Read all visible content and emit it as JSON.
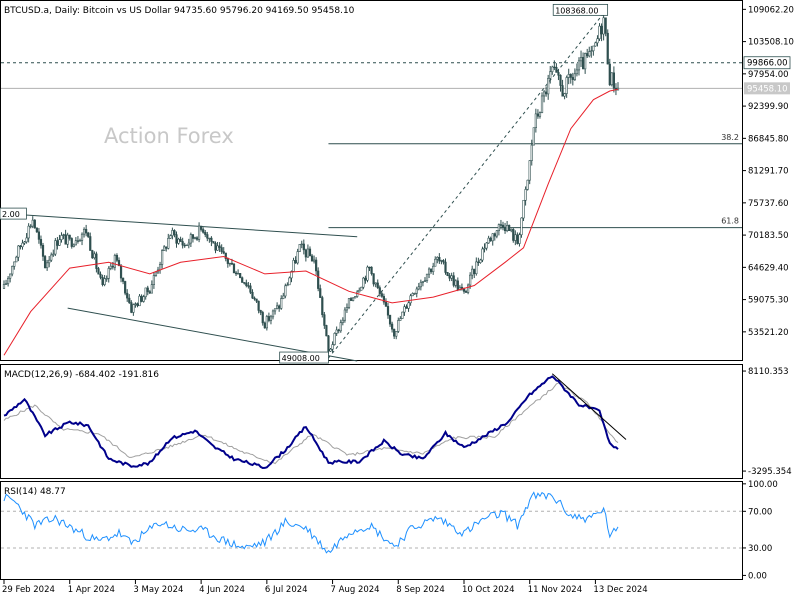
{
  "colors": {
    "background": "#ffffff",
    "frame": "#000000",
    "candle": "#2f4f4f",
    "ma_line": "#e8202a",
    "macd_line": "#00008b",
    "macd_signal": "#a0a0a0",
    "rsi_line": "#1e90ff",
    "level_line": "#2f4f4f",
    "trendline": "#2f4f4f",
    "watermark": "#c8c8c8"
  },
  "header": {
    "title": "BTCUSD.a, Daily:  Bitcoin vs US Dollar  94735.60 95796.20 94169.50 95458.10"
  },
  "watermark": "Action Forex",
  "chart_data": [
    {
      "type": "candlestick",
      "title": "BTCUSD.a, Daily:  Bitcoin vs US Dollar  94735.60 95796.20 94169.50 95458.10",
      "ylim": [
        48500,
        110500
      ],
      "y_ticks": [
        "109062.20",
        "103508.10",
        "97954.00",
        "92399.90",
        "86845.80",
        "81291.70",
        "75737.60",
        "70183.50",
        "64629.40",
        "59075.30",
        "53521.20"
      ],
      "x_ticks": [
        "29 Feb 2024",
        "1 Apr 2024",
        "3 May 2024",
        "4 Jun 2024",
        "6 Jul 2024",
        "7 Aug 2024",
        "8 Sep 2024",
        "10 Oct 2024",
        "11 Nov 2024",
        "13 Dec 2024"
      ],
      "x_range": [
        "2024-02-29",
        "2024-12-24"
      ],
      "series": [
        {
          "kind": "price-close",
          "points": [
            [
              "2024-02-29",
              61000
            ],
            [
              "2024-03-05",
              66000
            ],
            [
              "2024-03-14",
              73000
            ],
            [
              "2024-03-20",
              65000
            ],
            [
              "2024-03-27",
              70000
            ],
            [
              "2024-04-01",
              69000
            ],
            [
              "2024-04-09",
              71000
            ],
            [
              "2024-04-17",
              61000
            ],
            [
              "2024-04-23",
              66500
            ],
            [
              "2024-05-01",
              57500
            ],
            [
              "2024-05-10",
              61000
            ],
            [
              "2024-05-20",
              70500
            ],
            [
              "2024-05-27",
              68500
            ],
            [
              "2024-06-05",
              71500
            ],
            [
              "2024-06-12",
              67500
            ],
            [
              "2024-06-20",
              64500
            ],
            [
              "2024-06-27",
              61500
            ],
            [
              "2024-07-05",
              55000
            ],
            [
              "2024-07-12",
              58000
            ],
            [
              "2024-07-22",
              68000
            ],
            [
              "2024-07-29",
              66000
            ],
            [
              "2024-08-05",
              50000
            ],
            [
              "2024-08-15",
              58500
            ],
            [
              "2024-08-25",
              64500
            ],
            [
              "2024-09-06",
              53500
            ],
            [
              "2024-09-15",
              60500
            ],
            [
              "2024-09-27",
              66000
            ],
            [
              "2024-10-10",
              60000
            ],
            [
              "2024-10-20",
              68500
            ],
            [
              "2024-10-29",
              72500
            ],
            [
              "2024-11-05",
              69000
            ],
            [
              "2024-11-10",
              79500
            ],
            [
              "2024-11-13",
              89000
            ],
            [
              "2024-11-22",
              98500
            ],
            [
              "2024-11-27",
              95000
            ],
            [
              "2024-12-05",
              99000
            ],
            [
              "2024-12-12",
              101500
            ],
            [
              "2024-12-17",
              107500
            ],
            [
              "2024-12-20",
              97500
            ],
            [
              "2024-12-24",
              95458.1
            ]
          ]
        },
        {
          "kind": "moving-average",
          "points": [
            [
              "2024-02-29",
              49500
            ],
            [
              "2024-03-13",
              57000
            ],
            [
              "2024-04-01",
              64500
            ],
            [
              "2024-04-20",
              65500
            ],
            [
              "2024-05-10",
              63500
            ],
            [
              "2024-05-25",
              65500
            ],
            [
              "2024-06-15",
              66500
            ],
            [
              "2024-07-05",
              63500
            ],
            [
              "2024-07-25",
              64000
            ],
            [
              "2024-08-15",
              60500
            ],
            [
              "2024-09-05",
              58500
            ],
            [
              "2024-09-25",
              59500
            ],
            [
              "2024-10-15",
              61500
            ],
            [
              "2024-10-30",
              65500
            ],
            [
              "2024-11-08",
              68000
            ],
            [
              "2024-11-20",
              79000
            ],
            [
              "2024-12-01",
              88500
            ],
            [
              "2024-12-12",
              93500
            ],
            [
              "2024-12-20",
              95000
            ],
            [
              "2024-12-24",
              95300
            ]
          ]
        }
      ],
      "levels": [
        {
          "value": 99866.0,
          "label": "99866.00",
          "style": "dashed"
        },
        {
          "value": 95458.1,
          "label": "95458.10",
          "style": "solid"
        }
      ],
      "fibonacci": [
        {
          "label": "38.2",
          "value": 85908,
          "from": "2024-08-05"
        },
        {
          "label": "61.8",
          "value": 71465,
          "from": "2024-08-05"
        }
      ],
      "annotations": [
        {
          "label": "108368.00",
          "date": "2024-12-17",
          "value": 108368.0
        },
        {
          "label": "49008.00",
          "date": "2024-08-05",
          "value": 49008.0
        },
        {
          "label": "2.00",
          "date": "2024-02-29",
          "value": 73800
        }
      ],
      "trendlines": [
        {
          "style": "solid",
          "points": [
            [
              "2024-03-04",
              73800
            ],
            [
              "2024-08-19",
              69900
            ]
          ]
        },
        {
          "style": "solid",
          "points": [
            [
              "2024-03-31",
              57600
            ],
            [
              "2024-08-19",
              48500
            ]
          ]
        },
        {
          "style": "dashed",
          "points": [
            [
              "2024-08-05",
              49008
            ],
            [
              "2024-12-17",
              108368
            ]
          ]
        }
      ]
    },
    {
      "type": "line",
      "title": "MACD(12,26,9) -684.402 -191.816",
      "ylim": [
        -4200,
        8800
      ],
      "y_ticks": [
        "8110.353",
        "-3295.354"
      ],
      "series": [
        {
          "kind": "macd",
          "points": [
            [
              "2024-02-29",
              3000
            ],
            [
              "2024-03-10",
              4900
            ],
            [
              "2024-03-20",
              800
            ],
            [
              "2024-04-01",
              2300
            ],
            [
              "2024-04-10",
              1900
            ],
            [
              "2024-04-20",
              -1900
            ],
            [
              "2024-05-01",
              -2700
            ],
            [
              "2024-05-10",
              -2400
            ],
            [
              "2024-05-20",
              400
            ],
            [
              "2024-06-01",
              1300
            ],
            [
              "2024-06-10",
              -500
            ],
            [
              "2024-06-20",
              -1900
            ],
            [
              "2024-07-05",
              -2900
            ],
            [
              "2024-07-15",
              -900
            ],
            [
              "2024-07-25",
              1800
            ],
            [
              "2024-08-05",
              -2300
            ],
            [
              "2024-08-20",
              -2200
            ],
            [
              "2024-09-01",
              100
            ],
            [
              "2024-09-10",
              -1400
            ],
            [
              "2024-09-20",
              -1900
            ],
            [
              "2024-10-01",
              1000
            ],
            [
              "2024-10-10",
              -600
            ],
            [
              "2024-10-20",
              700
            ],
            [
              "2024-11-01",
              2400
            ],
            [
              "2024-11-10",
              5200
            ],
            [
              "2024-11-22",
              7600
            ],
            [
              "2024-12-05",
              4300
            ],
            [
              "2024-12-15",
              3500
            ],
            [
              "2024-12-20",
              -200
            ],
            [
              "2024-12-24",
              -684.4
            ]
          ]
        },
        {
          "kind": "signal",
          "points": [
            [
              "2024-02-29",
              2500
            ],
            [
              "2024-03-15",
              4200
            ],
            [
              "2024-03-28",
              1500
            ],
            [
              "2024-04-15",
              1000
            ],
            [
              "2024-05-01",
              -1800
            ],
            [
              "2024-05-20",
              -500
            ],
            [
              "2024-06-05",
              900
            ],
            [
              "2024-06-25",
              -1200
            ],
            [
              "2024-07-10",
              -2400
            ],
            [
              "2024-07-28",
              900
            ],
            [
              "2024-08-15",
              -1500
            ],
            [
              "2024-09-01",
              -700
            ],
            [
              "2024-09-20",
              -1300
            ],
            [
              "2024-10-05",
              500
            ],
            [
              "2024-10-25",
              600
            ],
            [
              "2024-11-08",
              3500
            ],
            [
              "2024-11-25",
              6700
            ],
            [
              "2024-12-10",
              4300
            ],
            [
              "2024-12-24",
              -191.8
            ]
          ]
        }
      ],
      "trendlines": [
        {
          "style": "solid",
          "points": [
            [
              "2024-11-22",
              7800
            ],
            [
              "2024-12-24",
              300
            ]
          ]
        }
      ]
    },
    {
      "type": "line",
      "title": "RSI(14) 48.77",
      "ylim": [
        0,
        100
      ],
      "y_ticks": [
        "100.00",
        "70.00",
        "30.00",
        "0.00"
      ],
      "levels": [
        {
          "value": 70,
          "style": "dashed"
        },
        {
          "value": 30,
          "style": "dashed"
        }
      ],
      "series": [
        {
          "kind": "rsi",
          "points": [
            [
              "2024-02-29",
              85
            ],
            [
              "2024-03-05",
              81
            ],
            [
              "2024-03-15",
              55
            ],
            [
              "2024-03-25",
              62
            ],
            [
              "2024-04-05",
              48
            ],
            [
              "2024-04-15",
              37
            ],
            [
              "2024-04-25",
              46
            ],
            [
              "2024-05-01",
              35
            ],
            [
              "2024-05-15",
              58
            ],
            [
              "2024-05-25",
              50
            ],
            [
              "2024-06-05",
              49
            ],
            [
              "2024-06-15",
              38
            ],
            [
              "2024-06-25",
              30
            ],
            [
              "2024-07-05",
              36
            ],
            [
              "2024-07-15",
              58
            ],
            [
              "2024-07-25",
              52
            ],
            [
              "2024-08-05",
              25
            ],
            [
              "2024-08-15",
              48
            ],
            [
              "2024-08-25",
              55
            ],
            [
              "2024-09-06",
              32
            ],
            [
              "2024-09-15",
              52
            ],
            [
              "2024-09-27",
              63
            ],
            [
              "2024-10-10",
              46
            ],
            [
              "2024-10-20",
              62
            ],
            [
              "2024-10-29",
              68
            ],
            [
              "2024-11-05",
              55
            ],
            [
              "2024-11-12",
              86
            ],
            [
              "2024-11-22",
              87
            ],
            [
              "2024-12-01",
              65
            ],
            [
              "2024-12-10",
              62
            ],
            [
              "2024-12-17",
              72
            ],
            [
              "2024-12-20",
              45
            ],
            [
              "2024-12-24",
              48.77
            ]
          ]
        }
      ]
    }
  ]
}
